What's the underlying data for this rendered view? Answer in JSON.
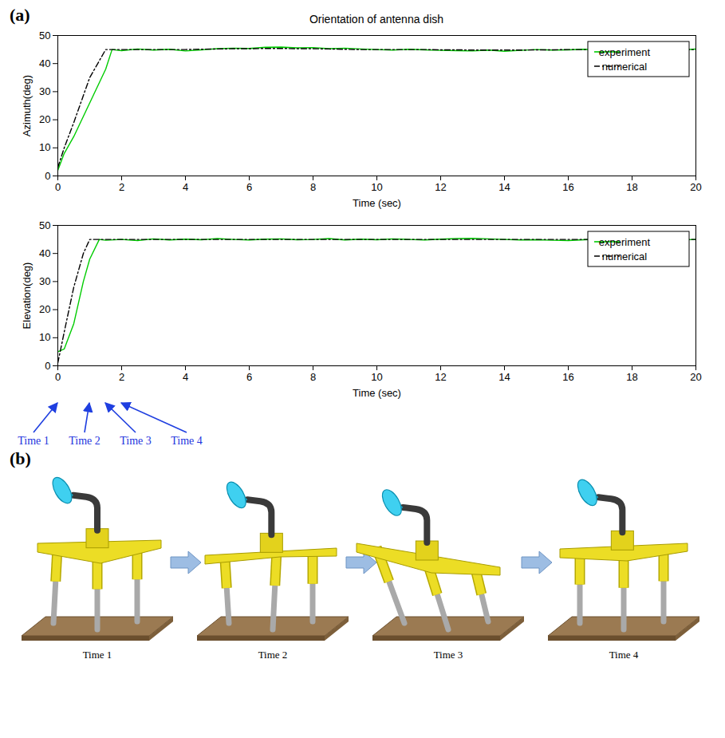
{
  "panel_labels": [
    "(a)",
    "(b)"
  ],
  "chart_data": [
    {
      "type": "line",
      "title": "Orientation of antenna dish",
      "xlabel": "Time (sec)",
      "ylabel": "Azimuth(deg)",
      "x": [
        0,
        0.2,
        0.5,
        1,
        1.5,
        1.7,
        2,
        2.5,
        3,
        3.5,
        4,
        4.5,
        5,
        5.5,
        6,
        6.5,
        7,
        7.5,
        8,
        8.5,
        9,
        9.5,
        10,
        10.5,
        11,
        11.5,
        12,
        12.5,
        13,
        13.5,
        14,
        14.5,
        15,
        15.5,
        16,
        16.5,
        17,
        17.5,
        18,
        18.5,
        19,
        19.5,
        20
      ],
      "series": [
        {
          "name": "experiment",
          "color": "#00cc00",
          "line_style": "solid",
          "values": [
            2,
            8,
            14,
            26,
            38,
            45,
            44.6,
            45.2,
            44.8,
            45.1,
            44.5,
            44.9,
            45.3,
            45.5,
            45.4,
            45.8,
            45.9,
            45.6,
            45.7,
            45.3,
            45.5,
            45.2,
            45.0,
            44.8,
            45.1,
            44.9,
            44.7,
            44.6,
            44.5,
            44.8,
            44.4,
            44.7,
            45.0,
            44.8,
            44.9,
            45.1,
            44.8,
            45.0,
            44.9,
            45.1,
            45.0,
            44.8,
            45.2
          ]
        },
        {
          "name": "numerical",
          "color": "#000000",
          "line_style": "dashdot",
          "values": [
            3,
            10,
            19,
            35,
            45,
            45,
            45.0,
            45.0,
            45.0,
            45.0,
            45.0,
            45.1,
            45.2,
            45.3,
            45.3,
            45.4,
            45.4,
            45.3,
            45.3,
            45.2,
            45.1,
            45.0,
            45.0,
            45.0,
            45.0,
            45.0,
            44.9,
            44.9,
            44.8,
            44.8,
            44.8,
            44.8,
            44.9,
            44.9,
            45.0,
            45.0,
            45.0,
            45.0,
            45.0,
            45.0,
            45.0,
            45.0,
            45.0
          ]
        }
      ],
      "xlim": [
        0,
        20
      ],
      "xticks": [
        0,
        2,
        4,
        6,
        8,
        10,
        12,
        14,
        16,
        18,
        20
      ],
      "ylim": [
        0,
        50
      ],
      "yticks": [
        0,
        10,
        20,
        30,
        40,
        50
      ],
      "legend": "northeast",
      "grid": false
    },
    {
      "type": "line",
      "xlabel": "Time (sec)",
      "ylabel": "Elevation(deg)",
      "x": [
        0,
        0.2,
        0.5,
        0.8,
        1,
        1.3,
        1.5,
        2,
        2.5,
        3,
        3.5,
        4,
        4.5,
        5,
        5.5,
        6,
        6.5,
        7,
        7.5,
        8,
        8.5,
        9,
        9.5,
        10,
        10.5,
        11,
        11.5,
        12,
        12.5,
        13,
        13.5,
        14,
        14.5,
        15,
        15.5,
        16,
        16.5,
        17,
        17.5,
        18,
        18.5,
        19,
        19.5,
        20
      ],
      "series": [
        {
          "name": "experiment",
          "color": "#00cc00",
          "line_style": "solid",
          "values": [
            5,
            6,
            15,
            30,
            38,
            45,
            44.7,
            45.0,
            44.6,
            45.2,
            44.8,
            45.1,
            44.9,
            45.3,
            45.0,
            44.8,
            45.1,
            45.2,
            44.9,
            45.0,
            45.3,
            44.8,
            45.1,
            44.9,
            45.2,
            45.0,
            44.8,
            45.1,
            45.3,
            45.4,
            45.2,
            45.0,
            44.8,
            44.9,
            44.7,
            44.6,
            44.9,
            45.1,
            44.8,
            45.0,
            44.9,
            45.2,
            44.8,
            45.0
          ]
        },
        {
          "name": "numerical",
          "color": "#000000",
          "line_style": "dashdot",
          "values": [
            1,
            12,
            28,
            40,
            45,
            45,
            45,
            45.0,
            45.0,
            45.0,
            45.0,
            45.0,
            45.0,
            45.0,
            45.0,
            45.0,
            45.0,
            45.0,
            45.0,
            45.0,
            45.0,
            45.0,
            45.0,
            45.0,
            45.0,
            45.0,
            45.0,
            45.0,
            45.0,
            45.0,
            45.0,
            45.0,
            45.0,
            45.0,
            45.0,
            45.0,
            45.0,
            45.0,
            45.0,
            45.0,
            45.0,
            45.0,
            45.0,
            45.0
          ]
        }
      ],
      "xlim": [
        0,
        20
      ],
      "xticks": [
        0,
        2,
        4,
        6,
        8,
        10,
        12,
        14,
        16,
        18,
        20
      ],
      "ylim": [
        0,
        50
      ],
      "yticks": [
        0,
        10,
        20,
        30,
        40,
        50
      ],
      "legend": "northeast",
      "grid": false,
      "annotations": [
        {
          "text": "Time 1",
          "x": 0
        },
        {
          "text": "Time 2",
          "x": 1
        },
        {
          "text": "Time 3",
          "x": 1.5
        },
        {
          "text": "Time 4",
          "x": 2
        }
      ]
    }
  ],
  "snapshots": {
    "captions": [
      "Time 1",
      "Time 2",
      "Time 3",
      "Time 4"
    ]
  }
}
